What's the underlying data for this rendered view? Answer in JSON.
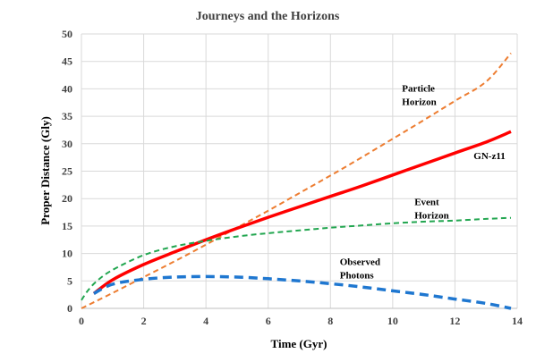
{
  "chart_data": {
    "type": "line",
    "title": "Journeys and the Horizons",
    "xlabel": "Time (Gyr)",
    "ylabel": "Proper Distance (Gly)",
    "xlim": [
      0,
      14
    ],
    "ylim": [
      0,
      50
    ],
    "xticks": [
      0,
      2,
      4,
      6,
      8,
      10,
      12,
      14
    ],
    "yticks": [
      0,
      5,
      10,
      15,
      20,
      25,
      30,
      35,
      40,
      45,
      50
    ],
    "grid": true,
    "legend": "none",
    "series": [
      {
        "name": "Particle Horizon",
        "label_lines": [
          "Particle",
          "Horizon"
        ],
        "color": "#ED7D31",
        "style": "dashed-fine",
        "x": [
          0,
          1,
          2,
          3,
          4,
          5,
          6,
          7,
          8,
          9,
          10,
          11,
          12,
          13,
          13.8
        ],
        "y": [
          0,
          2.8,
          5.7,
          8.6,
          11.6,
          14.7,
          17.8,
          21.0,
          24.2,
          27.5,
          30.9,
          34.3,
          37.8,
          41.3,
          46.5
        ]
      },
      {
        "name": "GN-z11",
        "label_lines": [
          "GN-z11"
        ],
        "color": "#FF0000",
        "style": "solid",
        "x": [
          0.4,
          1,
          2,
          3,
          4,
          5,
          6,
          7,
          8,
          9,
          10,
          11,
          12,
          13,
          13.8
        ],
        "y": [
          2.7,
          5.2,
          8.0,
          10.3,
          12.5,
          14.6,
          16.6,
          18.5,
          20.4,
          22.3,
          24.3,
          26.3,
          28.3,
          30.3,
          32.2
        ]
      },
      {
        "name": "Event Horizon",
        "label_lines": [
          "Event",
          "Horizon"
        ],
        "color": "#22A650",
        "style": "dashed-fine",
        "x": [
          0,
          0.2,
          0.5,
          1,
          2,
          3,
          4,
          5,
          6,
          7,
          8,
          9,
          10,
          11,
          12,
          13,
          13.8
        ],
        "y": [
          1.5,
          3.2,
          5.0,
          7.0,
          9.7,
          11.3,
          12.3,
          13.1,
          13.7,
          14.2,
          14.7,
          15.1,
          15.5,
          15.8,
          16.0,
          16.3,
          16.5
        ]
      },
      {
        "name": "Observed Photons",
        "label_lines": [
          "Observed",
          "Photons"
        ],
        "color": "#1F77D0",
        "style": "dashed-heavy",
        "x": [
          0.4,
          1,
          2,
          3,
          4,
          5,
          6,
          7,
          8,
          9,
          10,
          11,
          12,
          13,
          13.8
        ],
        "y": [
          2.7,
          4.4,
          5.3,
          5.7,
          5.8,
          5.7,
          5.4,
          5.0,
          4.5,
          3.9,
          3.2,
          2.5,
          1.7,
          0.9,
          0.0
        ]
      }
    ],
    "annotations": [
      {
        "series": 0,
        "x": 10.3,
        "y": 39.5
      },
      {
        "series": 1,
        "x": 12.6,
        "y": 27.2
      },
      {
        "series": 2,
        "x": 10.7,
        "y": 18.8
      },
      {
        "series": 3,
        "x": 8.3,
        "y": 7.9
      }
    ]
  }
}
